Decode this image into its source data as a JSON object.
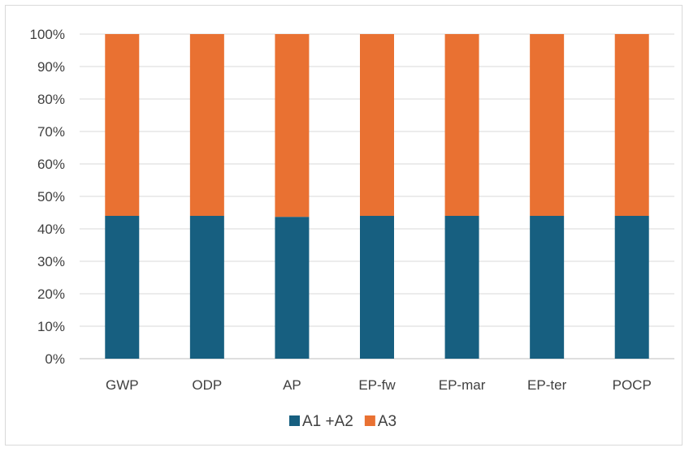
{
  "chart_data": {
    "type": "bar",
    "stacked": true,
    "percent_stacked": true,
    "categories": [
      "GWP",
      "ODP",
      "AP",
      "EP-fw",
      "EP-mar",
      "EP-ter",
      "POCP"
    ],
    "series": [
      {
        "name": "A1 +A2",
        "color": "#175f80",
        "values": [
          44,
          44,
          43.7,
          44,
          44,
          44,
          44
        ]
      },
      {
        "name": "A3",
        "color": "#e97132",
        "values": [
          56,
          56,
          56.3,
          56,
          56,
          56,
          56
        ]
      }
    ],
    "yticks": [
      "0%",
      "10%",
      "20%",
      "30%",
      "40%",
      "50%",
      "60%",
      "70%",
      "80%",
      "90%",
      "100%"
    ],
    "ylim": [
      0,
      100
    ],
    "grid": true,
    "legend": "bottom"
  }
}
